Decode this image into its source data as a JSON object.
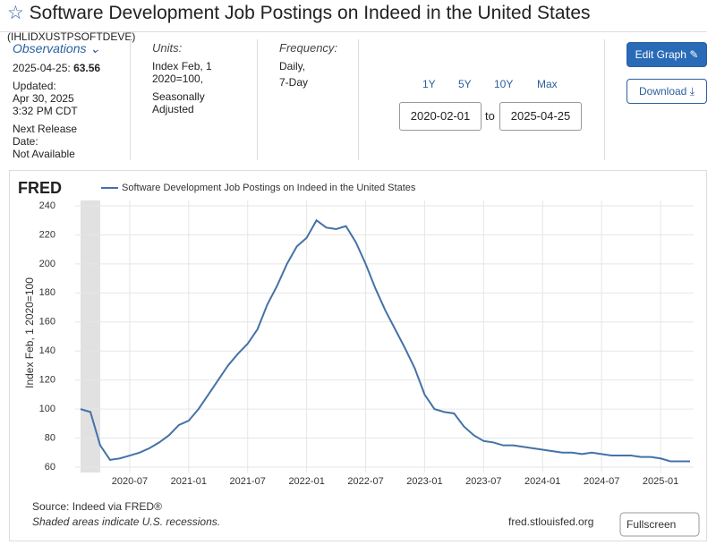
{
  "header": {
    "title": "Software Development Job Postings on Indeed in the United States",
    "series_id": "(IHLIDXUSTPSOFTDEVE)"
  },
  "meta": {
    "observations_label": "Observations",
    "observation_date": "2025-04-25:",
    "observation_value": "63.56",
    "updated_label": "Updated:",
    "updated_lines": [
      "Apr 30, 2025",
      "3:32 PM CDT"
    ],
    "next_release_lines": [
      "Next Release",
      "Date:"
    ],
    "next_release": "Not Available",
    "units_label": "Units:",
    "units_lines": [
      "Index Feb, 1",
      "2020=100,",
      "Seasonally",
      "Adjusted"
    ],
    "frequency_label": "Frequency:",
    "frequency_lines": [
      "Daily,",
      "7-Day"
    ]
  },
  "controls": {
    "ranges": [
      "1Y",
      "5Y",
      "10Y",
      "Max"
    ],
    "start": "2020-02-01",
    "to": "to",
    "end": "2025-04-25",
    "edit": "Edit Graph",
    "download": "Download"
  },
  "chart_data": {
    "type": "line",
    "brand": "FRED",
    "ylabel": "Index Feb, 1 2020=100",
    "x": [
      "2020-02",
      "2020-03",
      "2020-04",
      "2020-05",
      "2020-06",
      "2020-07",
      "2020-08",
      "2020-09",
      "2020-10",
      "2020-11",
      "2020-12",
      "2021-01",
      "2021-02",
      "2021-03",
      "2021-04",
      "2021-05",
      "2021-06",
      "2021-07",
      "2021-08",
      "2021-09",
      "2021-10",
      "2021-11",
      "2021-12",
      "2022-01",
      "2022-02",
      "2022-03",
      "2022-04",
      "2022-05",
      "2022-06",
      "2022-07",
      "2022-08",
      "2022-09",
      "2022-10",
      "2022-11",
      "2022-12",
      "2023-01",
      "2023-02",
      "2023-03",
      "2023-04",
      "2023-05",
      "2023-06",
      "2023-07",
      "2023-08",
      "2023-09",
      "2023-10",
      "2023-11",
      "2023-12",
      "2024-01",
      "2024-02",
      "2024-03",
      "2024-04",
      "2024-05",
      "2024-06",
      "2024-07",
      "2024-08",
      "2024-09",
      "2024-10",
      "2024-11",
      "2024-12",
      "2025-01",
      "2025-02",
      "2025-03",
      "2025-04"
    ],
    "series": [
      {
        "name": "Software Development Job Postings on Indeed in the United States",
        "color": "#4572a7",
        "values": [
          100,
          98,
          75,
          65,
          66,
          68,
          70,
          73,
          77,
          82,
          89,
          92,
          100,
          110,
          120,
          130,
          138,
          145,
          155,
          172,
          185,
          200,
          212,
          218,
          230,
          225,
          224,
          226,
          215,
          200,
          183,
          168,
          155,
          142,
          128,
          110,
          100,
          98,
          97,
          88,
          82,
          78,
          77,
          75,
          75,
          74,
          73,
          72,
          71,
          70,
          70,
          69,
          70,
          69,
          68,
          68,
          68,
          67,
          67,
          66,
          64,
          64,
          64
        ]
      }
    ],
    "xlim": [
      "2020-02",
      "2025-04"
    ],
    "xticks": [
      "2020-07",
      "2021-01",
      "2021-07",
      "2022-01",
      "2022-07",
      "2023-01",
      "2023-07",
      "2024-01",
      "2024-07",
      "2025-01"
    ],
    "ylim": [
      60,
      240
    ],
    "yticks": [
      60,
      80,
      100,
      120,
      140,
      160,
      180,
      200,
      220,
      240
    ],
    "grid": true,
    "recessions": [
      {
        "start": "2020-02",
        "end": "2020-04"
      }
    ]
  },
  "footer": {
    "source": "Source: Indeed via FRED®",
    "note": "Shaded areas indicate U.S. recessions.",
    "site": "fred.stlouisfed.org",
    "fullscreen": "Fullscreen"
  }
}
